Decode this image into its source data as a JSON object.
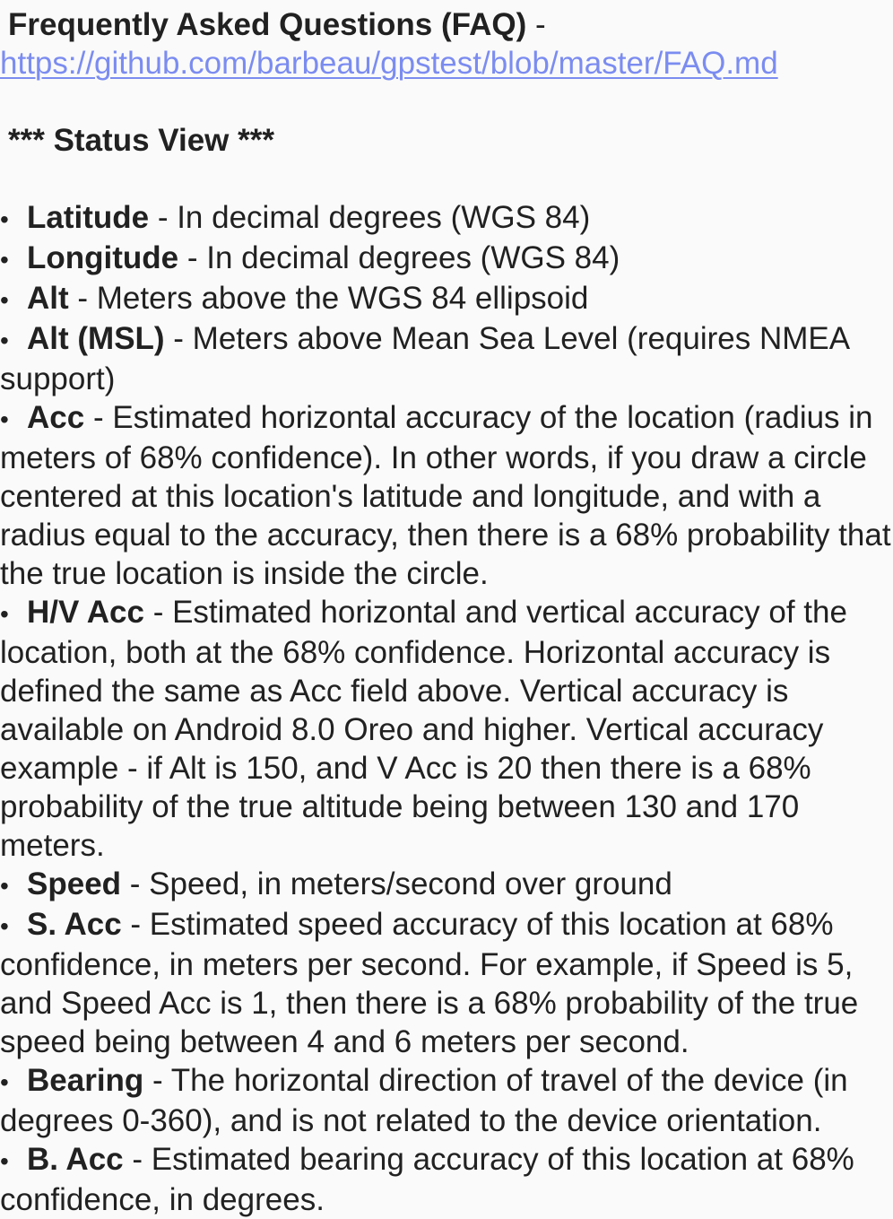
{
  "faq": {
    "title": "Frequently Asked Questions (FAQ)",
    "separator": " -",
    "link": "https://github.com/barbeau/gpstest/blob/master/FAQ.md"
  },
  "section": {
    "title": "*** Status View ***"
  },
  "bullet_char": "•",
  "items": [
    {
      "term": "Latitude",
      "desc": " - In decimal degrees (WGS 84)"
    },
    {
      "term": "Longitude",
      "desc": " - In decimal degrees (WGS 84)"
    },
    {
      "term": "Alt",
      "desc": " - Meters above the WGS 84 ellipsoid"
    },
    {
      "term": "Alt (MSL)",
      "desc": " - Meters above Mean Sea Level (requires NMEA support)"
    },
    {
      "term": "Acc",
      "desc": " - Estimated horizontal accuracy of the location (radius in meters of 68% confidence). In other words, if you draw a circle centered at this location's latitude and longitude, and with a radius equal to the accuracy, then there is a 68% probability that the true location is inside the circle."
    },
    {
      "term": "H/V Acc",
      "desc": " - Estimated horizontal and vertical accuracy of the location, both at the 68% confidence. Horizontal accuracy is defined the same as Acc field above. Vertical accuracy is available on Android 8.0 Oreo and higher. Vertical accuracy example - if Alt is 150, and V Acc is 20 then there is a 68% probability of the true altitude being between 130 and 170 meters."
    },
    {
      "term": "Speed",
      "desc": " - Speed, in meters/second over ground"
    },
    {
      "term": "S. Acc",
      "desc": " - Estimated speed accuracy of this location at 68% confidence, in meters per second. For example, if Speed is 5, and Speed Acc is 1, then there is a 68% probability of the true speed being between 4 and 6 meters per second."
    },
    {
      "term": "Bearing",
      "desc": " - The horizontal direction of travel of the device (in degrees 0-360), and is not related to the device orientation."
    },
    {
      "term": "B. Acc",
      "desc": " - Estimated bearing accuracy of this location at 68% confidence, in degrees."
    }
  ]
}
